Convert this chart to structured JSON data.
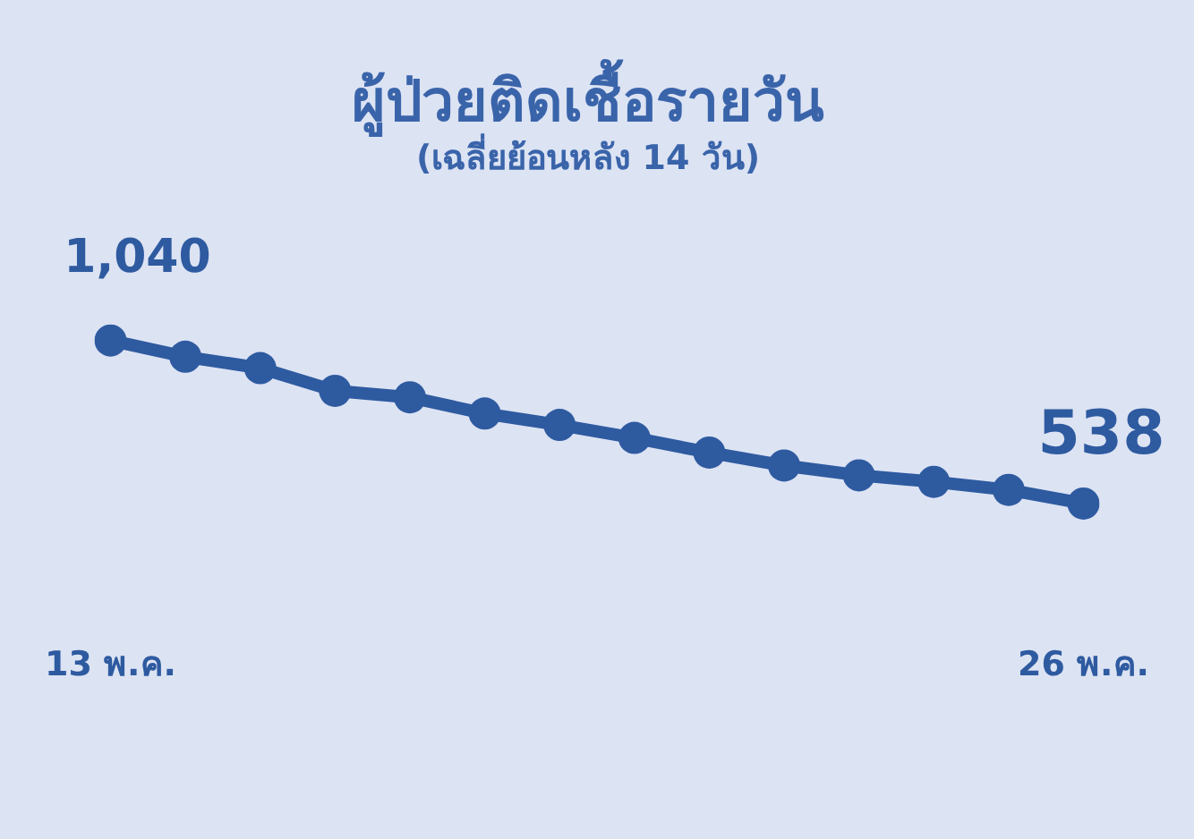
{
  "chart_data": {
    "type": "line",
    "title": "ผู้ป่วยติดเชื้อรายวัน",
    "subtitle": "(เฉลี่ยย้อนหลัง 14 วัน)",
    "categories": [
      "13 พ.ค.",
      null,
      null,
      null,
      null,
      null,
      null,
      null,
      null,
      null,
      null,
      null,
      null,
      "26 พ.ค."
    ],
    "series": [
      {
        "color": "#2e5aa0",
        "values": [
          1040,
          990,
          955,
          885,
          865,
          815,
          780,
          740,
          695,
          655,
          625,
          605,
          580,
          538
        ],
        "value_labels": [
          "1,040",
          null,
          null,
          null,
          null,
          null,
          null,
          null,
          null,
          null,
          null,
          null,
          null,
          "538"
        ]
      }
    ],
    "marker": "circle",
    "line_style": "solid",
    "legend": false,
    "grid": false,
    "tick_labels": "x"
  }
}
